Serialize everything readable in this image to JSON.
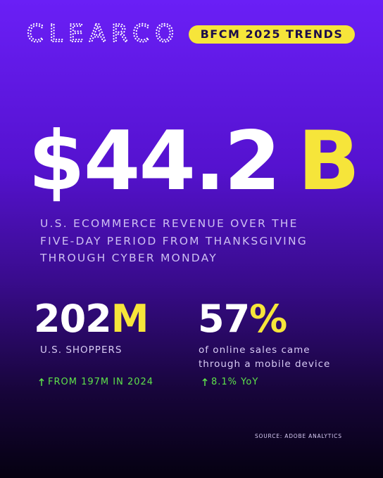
{
  "header": {
    "logo": "CLEARCO",
    "badge": "BFCM 2025 TRENDS"
  },
  "headline": {
    "amount": "$44.2",
    "unit": "B",
    "description": [
      "U.S. ECOMMERCE REVENUE OVER THE",
      "FIVE-DAY PERIOD FROM THANKSGIVING",
      "THROUGH CYBER MONDAY"
    ]
  },
  "stats": [
    {
      "value": "202",
      "unit": "M",
      "label": [
        "U.S. SHOPPERS"
      ],
      "change": "FROM 197M IN 2024"
    },
    {
      "value": "57",
      "unit": "%",
      "label": [
        "of online sales came",
        "through a mobile device"
      ],
      "change": "8.1% YoY"
    }
  ],
  "footer": {
    "source": "SOURCE: ADOBE ANALYTICS"
  }
}
